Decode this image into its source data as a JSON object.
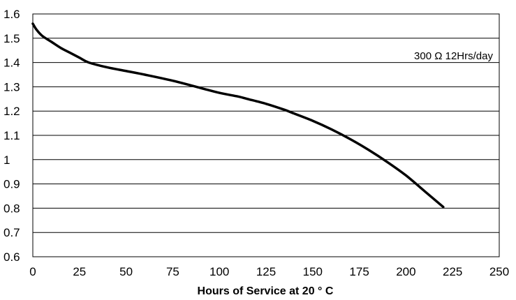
{
  "chart_data": {
    "type": "line",
    "title": "",
    "xlabel": "Hours of Service at 20 ° C",
    "ylabel": "",
    "xlim": [
      0,
      250
    ],
    "ylim": [
      0.6,
      1.6
    ],
    "x_ticks": [
      "0",
      "25",
      "50",
      "75",
      "100",
      "125",
      "150",
      "175",
      "200",
      "225",
      "250"
    ],
    "y_ticks": [
      "0.6",
      "0.7",
      "0.8",
      "0.9",
      "1",
      "1.1",
      "1.2",
      "1.3",
      "1.4",
      "1.5",
      "1.6"
    ],
    "grid": "horizontal",
    "annotation": "300 Ω 12Hrs/day",
    "series": [
      {
        "color": "#000000",
        "x": [
          0,
          2,
          5,
          10,
          15,
          20,
          25,
          30,
          40,
          50,
          60,
          75,
          90,
          100,
          110,
          115,
          125,
          135,
          140,
          150,
          160,
          170,
          180,
          190,
          200,
          210,
          220
        ],
        "y": [
          1.56,
          1.535,
          1.51,
          1.485,
          1.46,
          1.44,
          1.42,
          1.4,
          1.38,
          1.365,
          1.35,
          1.325,
          1.295,
          1.275,
          1.26,
          1.25,
          1.23,
          1.205,
          1.19,
          1.16,
          1.125,
          1.085,
          1.04,
          0.99,
          0.935,
          0.87,
          0.805
        ]
      }
    ]
  }
}
